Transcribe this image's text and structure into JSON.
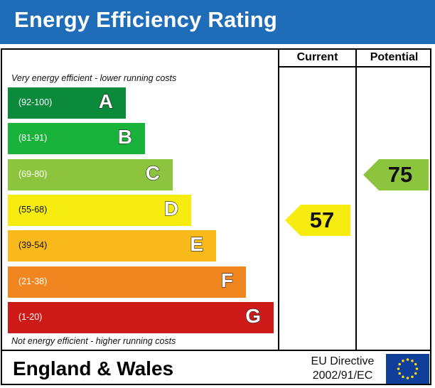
{
  "header": {
    "title": "Energy Efficiency Rating"
  },
  "columns": {
    "current": "Current",
    "potential": "Potential"
  },
  "notes": {
    "top": "Very energy efficient - lower running costs",
    "bottom": "Not energy efficient - higher running costs"
  },
  "chart_data": {
    "type": "bar",
    "bands": [
      {
        "letter": "A",
        "range": "(92-100)",
        "color": "#0b8a3c"
      },
      {
        "letter": "B",
        "range": "(81-91)",
        "color": "#19b33c"
      },
      {
        "letter": "C",
        "range": "(69-80)",
        "color": "#8cc43e"
      },
      {
        "letter": "D",
        "range": "(55-68)",
        "color": "#f7ec0f"
      },
      {
        "letter": "E",
        "range": "(39-54)",
        "color": "#f9b91b"
      },
      {
        "letter": "F",
        "range": "(21-38)",
        "color": "#f18520"
      },
      {
        "letter": "G",
        "range": "(1-20)",
        "color": "#cf1a1a"
      }
    ],
    "current": {
      "value": "57",
      "band": "D",
      "color": "#f7ec0f"
    },
    "potential": {
      "value": "75",
      "band": "C",
      "color": "#8cc43e"
    }
  },
  "footer": {
    "region": "England & Wales",
    "directive_line1": "EU Directive",
    "directive_line2": "2002/91/EC"
  }
}
